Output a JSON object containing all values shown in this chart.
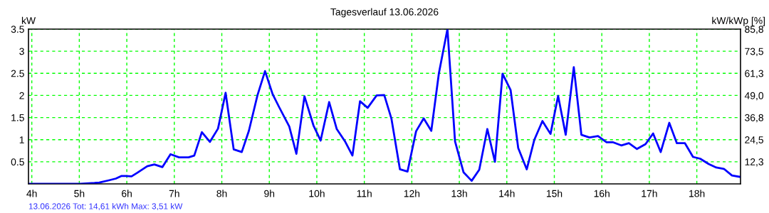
{
  "chart_data": {
    "type": "line",
    "title": "Tagesverlauf 13.06.2026",
    "ylabel": "kW",
    "y2label": "kW/kWp [%]",
    "x": [
      3.94,
      5.02,
      5.32,
      5.42,
      5.62,
      5.77,
      5.89,
      5.98,
      6.1,
      6.22,
      6.43,
      6.58,
      6.75,
      6.92,
      7.1,
      7.3,
      7.42,
      7.58,
      7.75,
      7.92,
      8.08,
      8.25,
      8.42,
      8.57,
      8.75,
      8.91,
      9.07,
      9.2,
      9.42,
      9.57,
      9.74,
      9.93,
      10.08,
      10.26,
      10.42,
      10.6,
      10.75,
      10.91,
      11.07,
      11.26,
      11.42,
      11.57,
      11.75,
      11.91,
      12.09,
      12.25,
      12.41,
      12.57,
      12.75,
      12.91,
      13.09,
      13.26,
      13.42,
      13.59,
      13.75,
      13.91,
      14.08,
      14.24,
      14.42,
      14.58,
      14.75,
      14.92,
      15.08,
      15.24,
      15.41,
      15.57,
      15.74,
      15.92,
      16.1,
      16.24,
      16.41,
      16.57,
      16.74,
      16.92,
      17.08,
      17.24,
      17.42,
      17.58,
      17.75,
      17.92,
      18.07,
      18.25,
      18.41,
      18.57,
      18.74,
      18.9
    ],
    "series": [
      {
        "color": "#0000ff",
        "values": [
          0,
          0,
          0.02,
          0.03,
          0.08,
          0.12,
          0.18,
          0.18,
          0.17,
          0.25,
          0.4,
          0.44,
          0.38,
          0.67,
          0.6,
          0.6,
          0.64,
          1.17,
          0.95,
          1.25,
          2.06,
          0.78,
          0.72,
          1.2,
          2.0,
          2.55,
          2.03,
          1.75,
          1.3,
          0.68,
          1.98,
          1.32,
          0.98,
          1.85,
          1.24,
          0.95,
          0.64,
          1.87,
          1.72,
          2.0,
          2.01,
          1.48,
          0.33,
          0.28,
          1.19,
          1.48,
          1.2,
          2.5,
          3.5,
          0.96,
          0.26,
          0.07,
          0.32,
          1.24,
          0.5,
          2.49,
          2.12,
          0.81,
          0.33,
          1.0,
          1.42,
          1.13,
          1.99,
          1.11,
          2.64,
          1.11,
          1.05,
          1.08,
          0.94,
          0.94,
          0.87,
          0.92,
          0.79,
          0.9,
          1.14,
          0.72,
          1.38,
          0.92,
          0.92,
          0.61,
          0.57,
          0.45,
          0.37,
          0.34,
          0.19,
          0.16
        ]
      }
    ],
    "xlim": [
      3.93,
      18.92
    ],
    "xticks": [
      {
        "value": 4,
        "label": "4h"
      },
      {
        "value": 5,
        "label": "5h"
      },
      {
        "value": 6,
        "label": "6h"
      },
      {
        "value": 7,
        "label": "7h"
      },
      {
        "value": 8,
        "label": "8h"
      },
      {
        "value": 9,
        "label": "9h"
      },
      {
        "value": 10,
        "label": "10h"
      },
      {
        "value": 11,
        "label": "11h"
      },
      {
        "value": 12,
        "label": "12h"
      },
      {
        "value": 13,
        "label": "13h"
      },
      {
        "value": 14,
        "label": "14h"
      },
      {
        "value": 15,
        "label": "15h"
      },
      {
        "value": 16,
        "label": "16h"
      },
      {
        "value": 17,
        "label": "17h"
      },
      {
        "value": 18,
        "label": "18h"
      }
    ],
    "ylim": [
      0,
      3.5
    ],
    "yticks": [
      0.5,
      1,
      1.5,
      2,
      2.5,
      3,
      3.5
    ],
    "y2lim": [
      0,
      85.8
    ],
    "y2ticks": [
      {
        "value": 12.3,
        "label": "12,3"
      },
      {
        "value": 24.5,
        "label": "24,5"
      },
      {
        "value": 36.8,
        "label": "36,8"
      },
      {
        "value": 49.0,
        "label": "49,0"
      },
      {
        "value": 61.3,
        "label": "61,3"
      },
      {
        "value": 73.5,
        "label": "73,5"
      },
      {
        "value": 85.8,
        "label": "85,8"
      }
    ],
    "grid": true,
    "line_style": "solid",
    "marker": "none",
    "annotations": [
      "13.06.2026 Tot: 14,61 kWh Max: 3,51 kW"
    ]
  }
}
